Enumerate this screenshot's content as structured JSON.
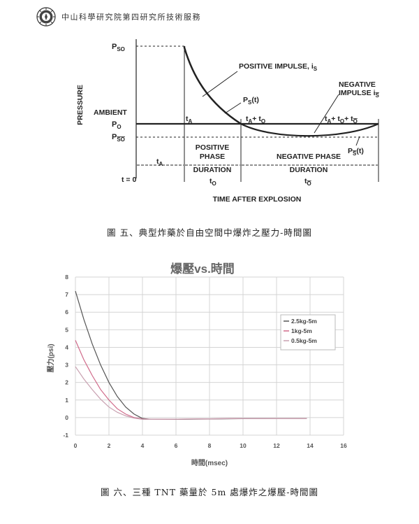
{
  "header": {
    "org_text": "中山科學研究院第四研究所技術服務"
  },
  "figure5": {
    "caption": "圖 五、典型炸藥於自由空間中爆炸之壓力-時間圖",
    "y_axis_label": "PRESSURE",
    "x_axis_label": "TIME AFTER EXPLOSION",
    "labels": {
      "pso": "P",
      "pso_sub": "SO",
      "ambient": "AMBIENT",
      "po": "P",
      "po_sub": "O",
      "pso_neg": "P",
      "pso_neg_sub": "SO",
      "positive_impulse": "POSITIVE IMPULSE, i",
      "positive_impulse_sub": "S",
      "negative_impulse_1": "NEGATIVE",
      "negative_impulse_2": "IMPULSE i",
      "negative_impulse_sub": "S",
      "ps_t": "P",
      "ps_t_sub": "S",
      "ps_t_paren": "(t)",
      "ps_neg_t": "P",
      "ps_neg_t_sub": "S",
      "ps_neg_t_paren": "(t)",
      "ta": "t",
      "ta_sub": "A",
      "ta_to": "t",
      "ta_to_sub": "A",
      "ta_to_mid": "+ t",
      "ta_to_sub2": "O",
      "ta_to_to": "t",
      "ta_to_to_sub": "A",
      "ta_to_to_mid": "+ t",
      "ta_to_to_sub2": "O",
      "ta_to_to_mid2": "+ t",
      "ta_to_to_sub3": "O",
      "t0": "t = 0",
      "ta_span": "t",
      "ta_span_sub": "A",
      "positive_phase_1": "POSITIVE",
      "positive_phase_2": "PHASE",
      "negative_phase": "NEGATIVE PHASE",
      "duration_pos": "DURATION",
      "duration_neg": "DURATION",
      "to": "t",
      "to_sub": "O",
      "to_neg": "t",
      "to_neg_sub": "O"
    }
  },
  "figure6": {
    "caption": "圖 六、三種 TNT 藥量於 5m 處爆炸之爆壓-時間圖",
    "chart_data": {
      "type": "line",
      "title": "爆壓vs.時間",
      "xlabel": "時間(msec)",
      "ylabel": "壓力(psi)",
      "xlim": [
        0,
        16
      ],
      "ylim": [
        -1,
        8
      ],
      "xticks": [
        0,
        2,
        4,
        6,
        8,
        10,
        12,
        14,
        16
      ],
      "yticks": [
        -1,
        0,
        1,
        2,
        3,
        4,
        5,
        6,
        7,
        8
      ],
      "grid": true,
      "legend_position": "right",
      "series": [
        {
          "name": "2.5kg-5m",
          "color": "#555555",
          "x": [
            0,
            0.5,
            1,
            1.5,
            2,
            2.5,
            3,
            3.5,
            4,
            4.5,
            6,
            8,
            10,
            12,
            13.8
          ],
          "y": [
            7.2,
            5.6,
            4.2,
            3.0,
            2.0,
            1.2,
            0.6,
            0.2,
            -0.05,
            -0.1,
            -0.1,
            -0.08,
            -0.06,
            -0.05,
            -0.05
          ]
        },
        {
          "name": "1kg-5m",
          "color": "#d06a8a",
          "x": [
            0,
            0.5,
            1,
            1.5,
            2,
            2.5,
            3,
            3.5,
            4,
            4.5,
            6,
            8,
            10,
            12,
            13.8
          ],
          "y": [
            4.4,
            3.3,
            2.4,
            1.6,
            1.0,
            0.5,
            0.2,
            0.0,
            -0.08,
            -0.1,
            -0.09,
            -0.07,
            -0.05,
            -0.05,
            -0.05
          ]
        },
        {
          "name": "0.5kg-5m",
          "color": "#c8a0b0",
          "x": [
            0,
            0.5,
            1,
            1.5,
            2,
            2.5,
            3,
            3.5,
            4,
            4.5,
            6,
            8,
            10,
            12,
            13.8
          ],
          "y": [
            2.9,
            2.2,
            1.6,
            1.05,
            0.6,
            0.3,
            0.1,
            -0.03,
            -0.1,
            -0.1,
            -0.09,
            -0.07,
            -0.05,
            -0.05,
            -0.05
          ]
        }
      ]
    }
  }
}
